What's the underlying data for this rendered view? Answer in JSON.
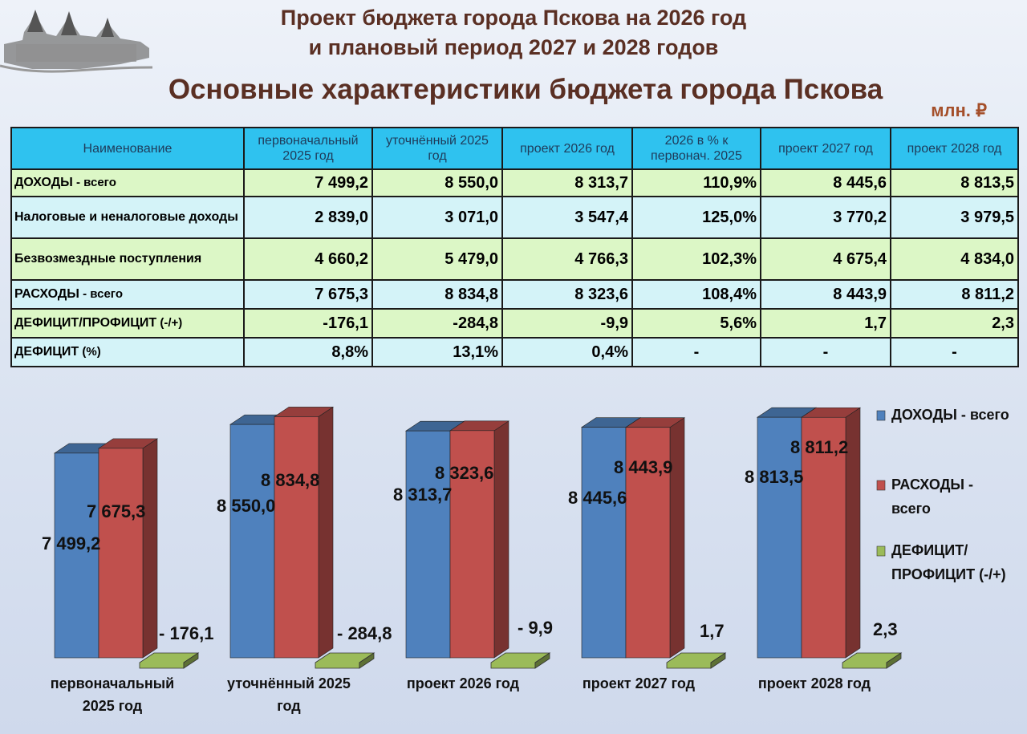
{
  "header": {
    "title_line1": "Проект бюджета города Пскова на 2026 год",
    "title_line2": "и плановый период 2027 и 2028 годов",
    "subtitle": "Основные характеристики бюджета города Пскова",
    "unit": "млн. ₽"
  },
  "table": {
    "headers": [
      "Наименование",
      "первоначальный 2025 год",
      "уточнённый 2025 год",
      "проект 2026 год",
      "2026 в % к первонач. 2025",
      "проект 2027 год",
      "проект 2028 год"
    ],
    "rows": [
      {
        "name": "ДОХОДЫ",
        "suffix": " - всего",
        "values": [
          "7 499,2",
          "8 550,0",
          "8 313,7",
          "110,9%",
          "8 445,6",
          "8 813,5"
        ]
      },
      {
        "name": "Налоговые и неналоговые доходы",
        "suffix": "",
        "values": [
          "2 839,0",
          "3 071,0",
          "3 547,4",
          "125,0%",
          "3 770,2",
          "3 979,5"
        ]
      },
      {
        "name": "Безвозмездные поступления",
        "suffix": "",
        "values": [
          "4 660,2",
          "5 479,0",
          "4 766,3",
          "102,3%",
          "4 675,4",
          "4 834,0"
        ]
      },
      {
        "name": "РАСХОДЫ",
        "suffix": " - всего",
        "values": [
          "7 675,3",
          "8 834,8",
          "8 323,6",
          "108,4%",
          "8 443,9",
          "8 811,2"
        ]
      },
      {
        "name": "ДЕФИЦИТ/ПРОФИЦИТ",
        "suffix": " (-/+)",
        "values": [
          "-176,1",
          "-284,8",
          "-9,9",
          "5,6%",
          "1,7",
          "2,3"
        ]
      },
      {
        "name": "ДЕФИЦИТ",
        "suffix": " (%)",
        "values": [
          "8,8%",
          "13,1%",
          "0,4%",
          "-",
          "-",
          "-"
        ]
      }
    ]
  },
  "chart_data": {
    "type": "bar",
    "categories": [
      "первоначальный 2025 год",
      "уточнённый 2025 год",
      "проект 2026 год",
      "проект 2027 год",
      "проект 2028 год"
    ],
    "series": [
      {
        "name": "ДОХОДЫ - всего",
        "color": "#4f81bd",
        "values": [
          7499.2,
          8550.0,
          8313.7,
          8445.6,
          8813.5
        ],
        "labels": [
          "7 499,2",
          "8 550,0",
          "8 313,7",
          "8 445,6",
          "8 813,5"
        ]
      },
      {
        "name": "РАСХОДЫ - всего",
        "color": "#c0504d",
        "values": [
          7675.3,
          8834.8,
          8323.6,
          8443.9,
          8811.2
        ],
        "labels": [
          "7 675,3",
          "8 834,8",
          "8 323,6",
          "8 443,9",
          "8 811,2"
        ]
      },
      {
        "name": "ДЕФИЦИТ/ ПРОФИЦИТ (-/+)",
        "color": "#9bbb59",
        "values": [
          -176.1,
          -284.8,
          -9.9,
          1.7,
          2.3
        ],
        "labels": [
          "- 176,1",
          "- 284,8",
          "- 9,9",
          "1,7",
          "2,3"
        ]
      }
    ],
    "ylim": [
      0,
      9700
    ],
    "legend": "right",
    "grid": false
  }
}
